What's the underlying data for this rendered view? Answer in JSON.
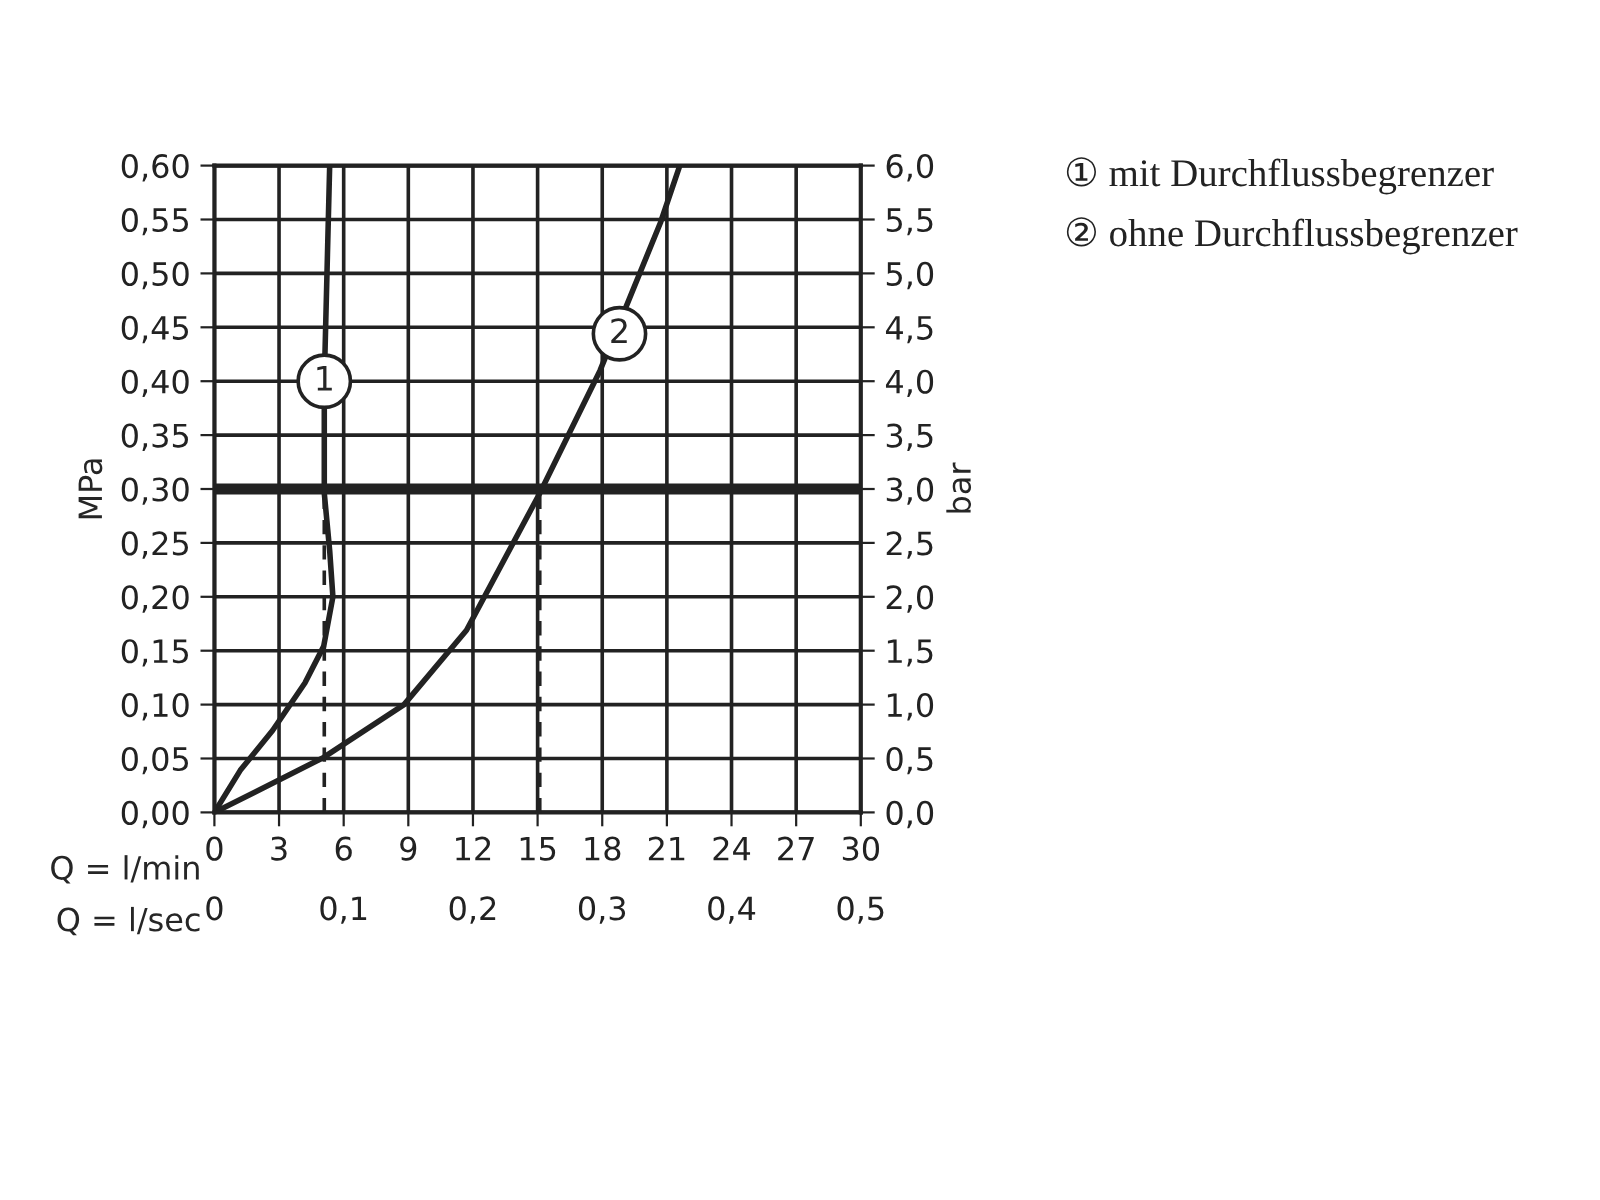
{
  "chart_data": {
    "type": "line",
    "xlabel": "Q = l/min",
    "x2label": "Q = l/sec",
    "ylabel": "MPa",
    "y2label": "bar",
    "xlim": [
      0,
      30
    ],
    "xticks": [
      0,
      3,
      6,
      9,
      12,
      15,
      18,
      21,
      24,
      27,
      30
    ],
    "x2lim": [
      0,
      0.5
    ],
    "x2ticks": [
      0,
      {
        "value": 0.1,
        "label": "0,1"
      },
      {
        "value": 0.2,
        "label": "0,2"
      },
      {
        "value": 0.3,
        "label": "0,3"
      },
      {
        "value": 0.4,
        "label": "0,4"
      },
      {
        "value": 0.5,
        "label": "0,5"
      }
    ],
    "ylim": [
      0,
      0.6
    ],
    "yticks": [
      {
        "value": 0,
        "label": "0,00"
      },
      {
        "value": 0.05,
        "label": "0,05"
      },
      {
        "value": 0.1,
        "label": "0,10"
      },
      {
        "value": 0.15,
        "label": "0,15"
      },
      {
        "value": 0.2,
        "label": "0,20"
      },
      {
        "value": 0.25,
        "label": "0,25"
      },
      {
        "value": 0.3,
        "label": "0,30"
      },
      {
        "value": 0.35,
        "label": "0,35"
      },
      {
        "value": 0.4,
        "label": "0,40"
      },
      {
        "value": 0.45,
        "label": "0,45"
      },
      {
        "value": 0.5,
        "label": "0,50"
      },
      {
        "value": 0.55,
        "label": "0,55"
      },
      {
        "value": 0.6,
        "label": "0,60"
      }
    ],
    "y2lim": [
      0,
      6
    ],
    "y2ticks": [
      {
        "value": 0,
        "label": "0,0"
      },
      {
        "value": 0.5,
        "label": "0,5"
      },
      {
        "value": 1,
        "label": "1,0"
      },
      {
        "value": 1.5,
        "label": "1,5"
      },
      {
        "value": 2,
        "label": "2,0"
      },
      {
        "value": 2.5,
        "label": "2,5"
      },
      {
        "value": 3,
        "label": "3,0"
      },
      {
        "value": 3.5,
        "label": "3,5"
      },
      {
        "value": 4,
        "label": "4,0"
      },
      {
        "value": 4.5,
        "label": "4,5"
      },
      {
        "value": 5,
        "label": "5,0"
      },
      {
        "value": 5.5,
        "label": "5,5"
      },
      {
        "value": 6,
        "label": "6,0"
      }
    ],
    "grid": true,
    "marker": "none",
    "line_style": "solid",
    "series": [
      {
        "color": "#222222",
        "x": [
          0,
          1.2,
          2.7,
          4.2,
          5.07,
          5.5,
          5.35,
          5.1,
          5.1,
          5.35
        ],
        "values": [
          0,
          0.039,
          0.076,
          0.12,
          0.154,
          0.2,
          0.243,
          0.296,
          0.4,
          0.6
        ]
      },
      {
        "color": "#222222",
        "x": [
          0,
          2.4,
          5.07,
          8.8,
          11.7,
          15.1,
          17.9,
          20.7,
          21.6
        ],
        "values": [
          0,
          0.024,
          0.051,
          0.1,
          0.169,
          0.296,
          0.41,
          0.547,
          0.6
        ]
      }
    ],
    "ref_lines": [
      {
        "axis": "y",
        "value": 0.3,
        "color": "#222222",
        "line_style": "solid"
      },
      {
        "axis": "x",
        "value": 5.1,
        "color": "#222222",
        "line_style": "dashed"
      },
      {
        "axis": "x",
        "value": 15.1,
        "color": "#222222",
        "line_style": "dashed"
      }
    ],
    "annotations": [
      {
        "text": "1",
        "x": 5.1,
        "y": 0.4
      },
      {
        "text": "2",
        "x": 18.8,
        "y": 0.444
      },
      "① mit Durchflussbegrenzer",
      "② ohne Durchflussbegrenzer"
    ]
  }
}
